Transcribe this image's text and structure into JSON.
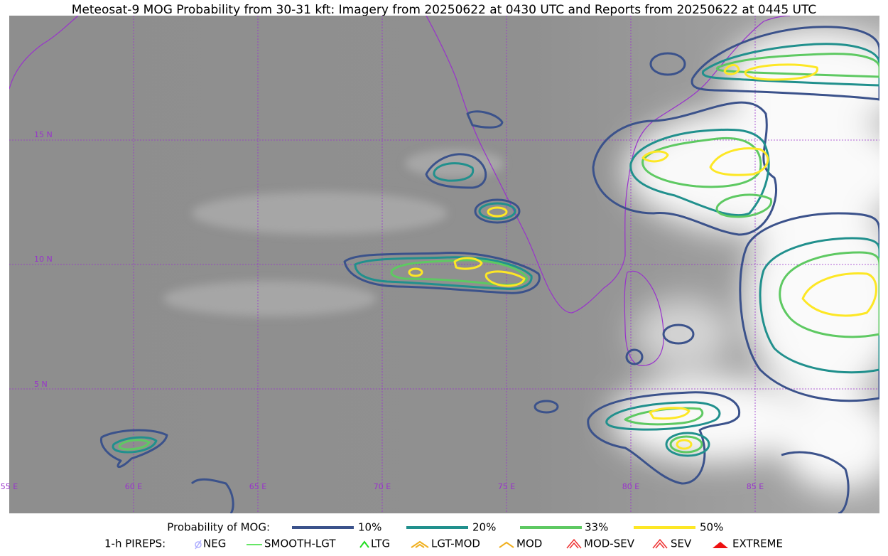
{
  "title": "Meteosat-9 MOG Probability from 30-31 kft: Imagery from 20250622 at 0430 UTC and Reports from 20250622 at 0445 UTC",
  "lat_labels": [
    "15 N",
    "10 N",
    "5 N"
  ],
  "lon_labels": [
    "55 E",
    "60 E",
    "65 E",
    "70 E",
    "75 E",
    "80 E",
    "85 E"
  ],
  "probability_legend": {
    "title": "Probability of MOG:",
    "items": [
      {
        "label": "10%",
        "color": "#3b528b"
      },
      {
        "label": "20%",
        "color": "#21908d"
      },
      {
        "label": "33%",
        "color": "#5ec962"
      },
      {
        "label": "50%",
        "color": "#fde725"
      }
    ]
  },
  "pirep_legend": {
    "title": "1-h PIREPS:",
    "items": [
      "NEG",
      "SMOOTH-LGT",
      "LTG",
      "LGT-MOD",
      "MOD",
      "MOD-SEV",
      "SEV",
      "EXTREME"
    ]
  }
}
